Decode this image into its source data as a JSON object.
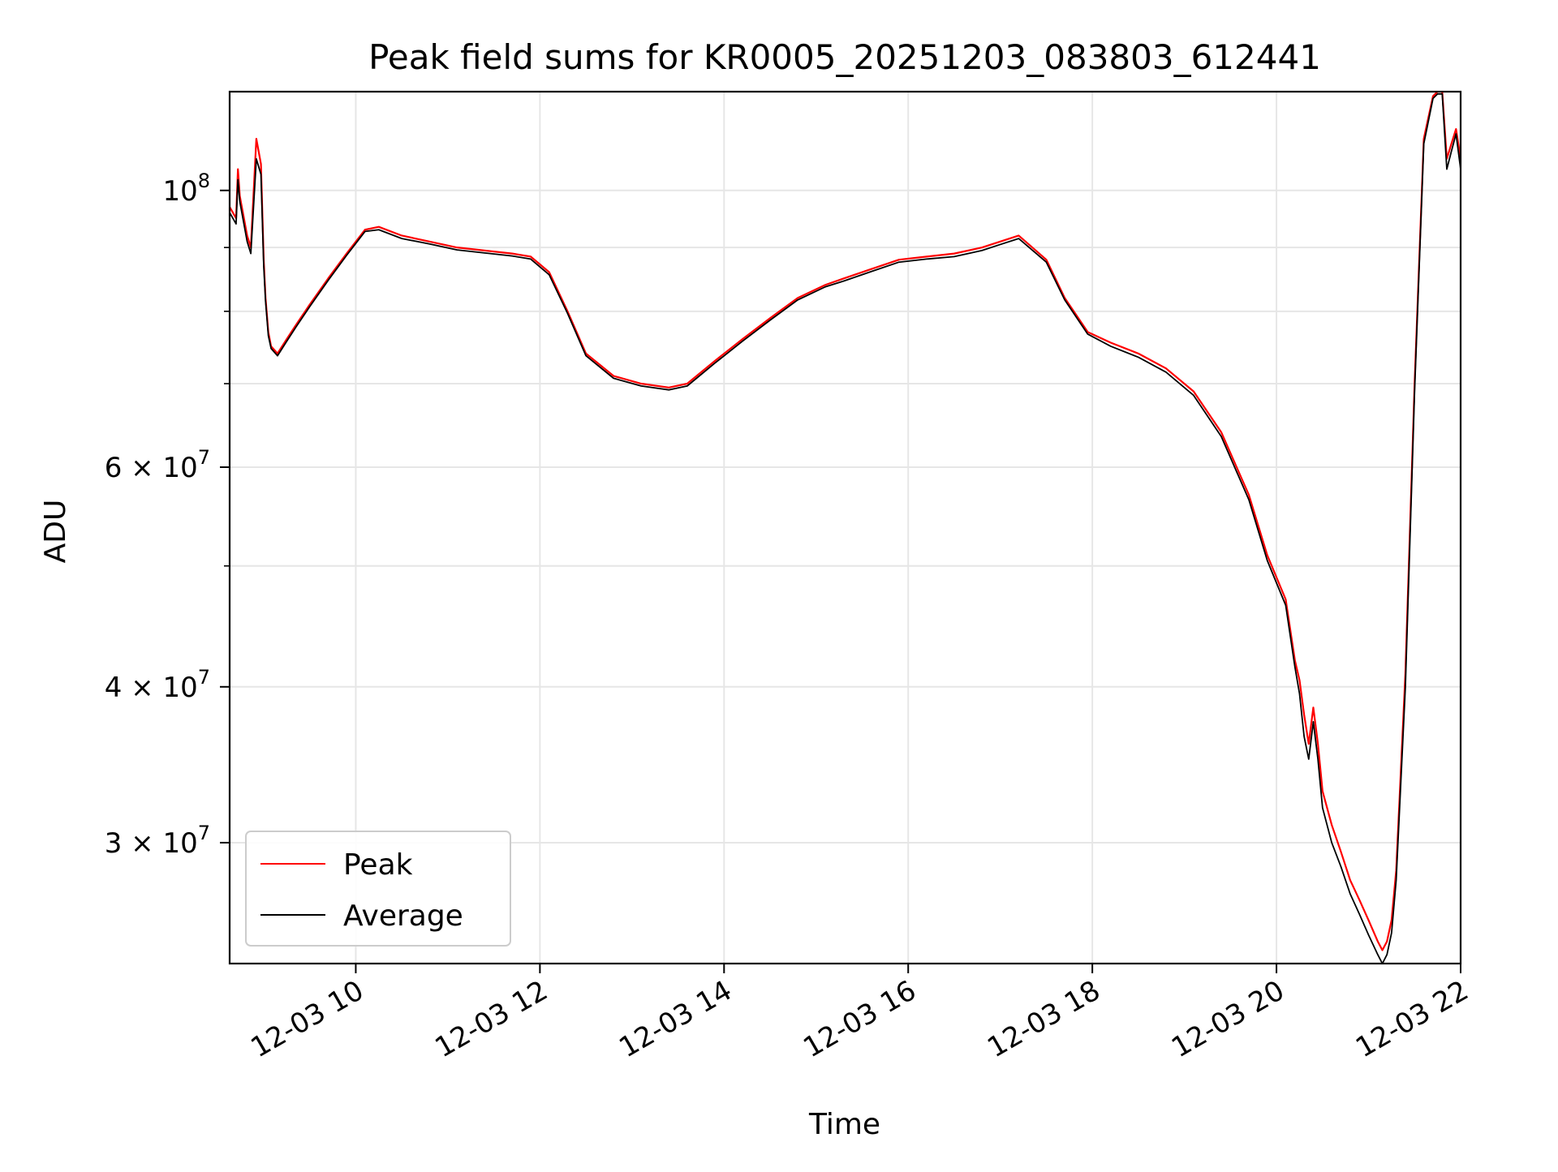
{
  "chart_data": {
    "type": "line",
    "title": "Peak field sums for KR0005_20251203_083803_612441",
    "xlabel": "Time",
    "ylabel": "ADU",
    "yscale": "log",
    "xlim": [
      8.63,
      22.0
    ],
    "ylim": [
      24000000.0,
      120000000.0
    ],
    "grid": true,
    "legend_position": "lower-left",
    "x_ticks": [
      {
        "value": 10,
        "label": "12-03 10"
      },
      {
        "value": 12,
        "label": "12-03 12"
      },
      {
        "value": 14,
        "label": "12-03 14"
      },
      {
        "value": 16,
        "label": "12-03 16"
      },
      {
        "value": 18,
        "label": "12-03 18"
      },
      {
        "value": 20,
        "label": "12-03 20"
      },
      {
        "value": 22,
        "label": "12-03 22"
      }
    ],
    "y_ticks": [
      {
        "value": 30000000,
        "mantissa": "3",
        "exponent": "7"
      },
      {
        "value": 40000000,
        "mantissa": "4",
        "exponent": "7"
      },
      {
        "value": 60000000,
        "mantissa": "6",
        "exponent": "7"
      },
      {
        "value": 100000000,
        "mantissa": "10",
        "exponent": "8"
      }
    ],
    "y_minor_ticks": [
      50000000,
      70000000,
      80000000,
      90000000
    ],
    "tick_times_symbol": "×",
    "series": [
      {
        "name": "Peak",
        "color": "#ff0000",
        "x": [
          8.63,
          8.7,
          8.72,
          8.74,
          8.82,
          8.86,
          8.92,
          8.97,
          9.0,
          9.02,
          9.05,
          9.08,
          9.15,
          9.25,
          9.35,
          9.5,
          9.7,
          9.9,
          10.1,
          10.25,
          10.5,
          10.8,
          11.1,
          11.4,
          11.7,
          11.9,
          12.1,
          12.3,
          12.5,
          12.8,
          13.1,
          13.4,
          13.6,
          13.9,
          14.2,
          14.5,
          14.8,
          15.1,
          15.3,
          15.6,
          15.9,
          16.2,
          16.5,
          16.8,
          17.0,
          17.2,
          17.5,
          17.7,
          17.95,
          18.2,
          18.5,
          18.8,
          19.1,
          19.4,
          19.7,
          19.9,
          20.1,
          20.2,
          20.25,
          20.3,
          20.35,
          20.4,
          20.45,
          20.5,
          20.6,
          20.7,
          20.8,
          20.9,
          21.0,
          21.1,
          21.15,
          21.2,
          21.25,
          21.3,
          21.4,
          21.5,
          21.6,
          21.7,
          21.75,
          21.8,
          21.85,
          21.9,
          21.95,
          22.0
        ],
        "values": [
          97000000,
          95000000,
          104000000,
          99000000,
          92000000,
          90000000,
          110000000,
          105000000,
          88000000,
          82000000,
          77000000,
          75000000,
          74000000,
          76000000,
          78000000,
          81000000,
          85000000,
          89000000,
          93000000,
          93500000,
          92000000,
          91000000,
          90000000,
          89500000,
          89000000,
          88500000,
          86000000,
          80000000,
          74000000,
          71000000,
          70000000,
          69500000,
          70000000,
          73000000,
          76000000,
          79000000,
          82000000,
          84000000,
          85000000,
          86500000,
          88000000,
          88500000,
          89000000,
          90000000,
          91000000,
          92000000,
          88000000,
          82000000,
          77000000,
          75500000,
          74000000,
          72000000,
          69000000,
          64000000,
          57000000,
          51000000,
          47000000,
          42000000,
          40500000,
          38000000,
          36000000,
          38500000,
          36000000,
          33000000,
          31000000,
          29500000,
          28000000,
          27000000,
          26000000,
          25000000,
          24600000,
          25000000,
          26000000,
          28500000,
          41000000,
          70000000,
          110000000,
          119000000,
          120000000,
          120000000,
          106000000,
          109000000,
          112000000,
          106000000
        ]
      },
      {
        "name": "Average",
        "color": "#000000",
        "x": [
          8.63,
          8.7,
          8.72,
          8.74,
          8.82,
          8.86,
          8.92,
          8.97,
          9.0,
          9.02,
          9.05,
          9.08,
          9.15,
          9.25,
          9.35,
          9.5,
          9.7,
          9.9,
          10.1,
          10.25,
          10.5,
          10.8,
          11.1,
          11.4,
          11.7,
          11.9,
          12.1,
          12.3,
          12.5,
          12.8,
          13.1,
          13.4,
          13.6,
          13.9,
          14.2,
          14.5,
          14.8,
          15.1,
          15.3,
          15.6,
          15.9,
          16.2,
          16.5,
          16.8,
          17.0,
          17.2,
          17.5,
          17.7,
          17.95,
          18.2,
          18.5,
          18.8,
          19.1,
          19.4,
          19.7,
          19.9,
          20.1,
          20.2,
          20.25,
          20.3,
          20.35,
          20.4,
          20.45,
          20.5,
          20.6,
          20.7,
          20.8,
          20.9,
          21.0,
          21.1,
          21.15,
          21.2,
          21.25,
          21.3,
          21.4,
          21.5,
          21.6,
          21.7,
          21.75,
          21.8,
          21.85,
          21.9,
          21.95,
          22.0
        ],
        "values": [
          96000000,
          94000000,
          102000000,
          98000000,
          91000000,
          89000000,
          106000000,
          103000000,
          87000000,
          81500000,
          76500000,
          74700000,
          73700000,
          75700000,
          77700000,
          80700000,
          84700000,
          88700000,
          92700000,
          93000000,
          91500000,
          90600000,
          89600000,
          89100000,
          88600000,
          88100000,
          85600000,
          79700000,
          73700000,
          70700000,
          69700000,
          69200000,
          69700000,
          72700000,
          75700000,
          78700000,
          81700000,
          83700000,
          84600000,
          86100000,
          87600000,
          88100000,
          88500000,
          89500000,
          90500000,
          91500000,
          87600000,
          81700000,
          76700000,
          75000000,
          73500000,
          71500000,
          68500000,
          63500000,
          56500000,
          50500000,
          46500000,
          41500000,
          39500000,
          36500000,
          35000000,
          37500000,
          35000000,
          32000000,
          30000000,
          28700000,
          27300000,
          26300000,
          25300000,
          24400000,
          24000000,
          24400000,
          25400000,
          28000000,
          40000000,
          69000000,
          109000000,
          118500000,
          119500000,
          119500000,
          104000000,
          107500000,
          111000000,
          104000000
        ]
      }
    ]
  }
}
